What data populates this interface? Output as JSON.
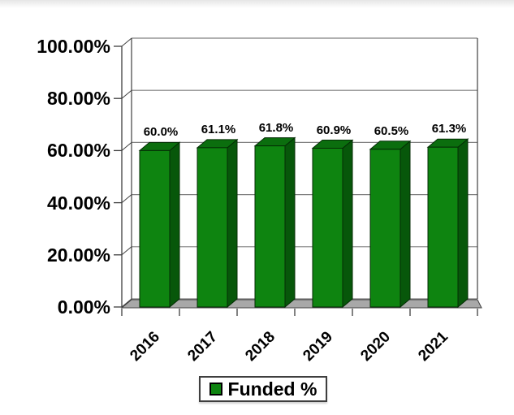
{
  "chart_data": {
    "type": "bar",
    "categories": [
      "2016",
      "2017",
      "2018",
      "2019",
      "2020",
      "2021"
    ],
    "series": [
      {
        "name": "Funded %",
        "values": [
          60.0,
          61.1,
          61.8,
          60.9,
          60.5,
          61.3
        ]
      }
    ],
    "data_labels": [
      "60.0%",
      "61.1%",
      "61.8%",
      "60.9%",
      "60.5%",
      "61.3%"
    ],
    "y_tick_labels": [
      "100.00%",
      "80.00%",
      "60.00%",
      "40.00%",
      "20.00%",
      "0.00%"
    ],
    "y_tick_values": [
      100,
      80,
      60,
      40,
      20,
      0
    ],
    "ylim": [
      0,
      100
    ],
    "grid": true,
    "projection": "3d-oblique",
    "legend": {
      "label": "Funded %",
      "position": "bottom"
    },
    "colors": {
      "bar_front": "#0e8410",
      "bar_top": "#0b6e0e",
      "bar_side": "#07570a",
      "bar_stroke": "#042d05",
      "floor": "#a8a8a8",
      "floor_stroke": "#3f3f3f",
      "gridline": "#808080",
      "axis": "#3f3f3f",
      "text": "#000000",
      "wall": "#ffffff"
    }
  }
}
